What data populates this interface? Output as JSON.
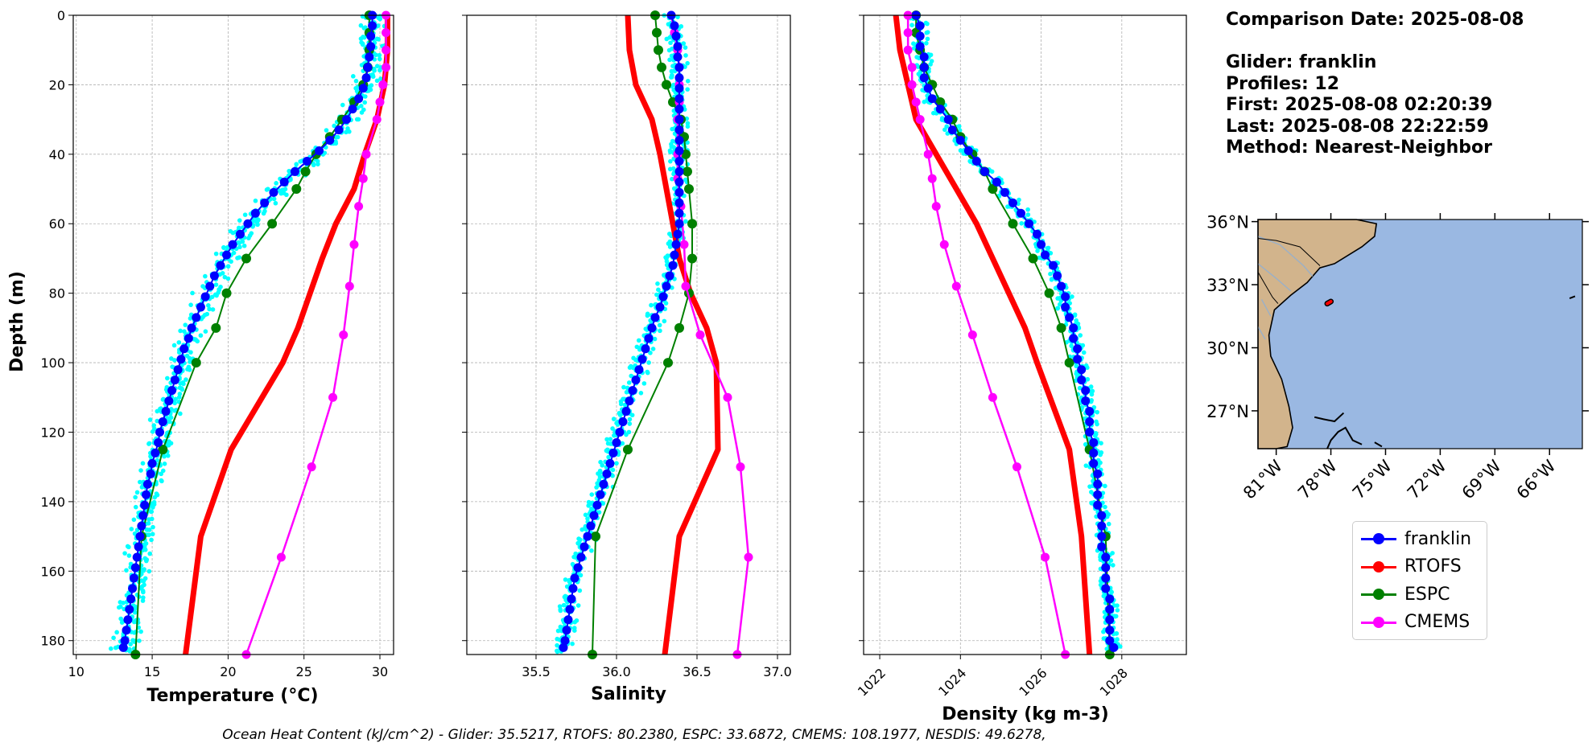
{
  "info": {
    "comparison_date_label": "Comparison Date: 2025-08-08",
    "glider_label": "Glider: franklin",
    "profiles_label": "Profiles: 12",
    "first_label": "First: 2025-08-08 02:20:39",
    "last_label": "Last: 2025-08-08 22:22:59",
    "method_label": "Method: Nearest-Neighbor"
  },
  "footer": "Ocean Heat Content (kJ/cm^2) - Glider: 35.5217,  RTOFS: 80.2380,  ESPC: 33.6872,  CMEMS: 108.1977,  NESDIS: 49.6278,",
  "colors": {
    "glider": "#0000ff",
    "rtofs": "#ff0000",
    "espc": "#008000",
    "cmems": "#ff00ff",
    "raw": "#00ffff",
    "land": "#d2b48c",
    "ocean": "#9ab8e2"
  },
  "legend": [
    {
      "label": "franklin",
      "color": "#0000ff"
    },
    {
      "label": "RTOFS",
      "color": "#ff0000"
    },
    {
      "label": "ESPC",
      "color": "#008000"
    },
    {
      "label": "CMEMS",
      "color": "#ff00ff"
    }
  ],
  "chart_data": [
    {
      "type": "line",
      "id": "temperature",
      "xlabel": "Temperature (°C)",
      "ylabel": "Depth (m)",
      "xlim": [
        9.8,
        30.9
      ],
      "ylim": [
        184,
        0
      ],
      "xticks": [
        10,
        15,
        20,
        25,
        30
      ],
      "yticks": [
        0,
        20,
        40,
        60,
        80,
        100,
        120,
        140,
        160,
        180
      ],
      "grid": true,
      "series": [
        {
          "name": "franklin",
          "depth": [
            0,
            3,
            6,
            9,
            12,
            15,
            18,
            21,
            24,
            27,
            30,
            33,
            36,
            39,
            42,
            45,
            48,
            51,
            54,
            57,
            60,
            63,
            66,
            69,
            72,
            75,
            78,
            81,
            84,
            87,
            90,
            93,
            96,
            99,
            102,
            105,
            108,
            111,
            114,
            117,
            120,
            123,
            126,
            129,
            132,
            135,
            138,
            141,
            144,
            147,
            150,
            153,
            156,
            159,
            162,
            165,
            168,
            171,
            174,
            177,
            180,
            182
          ],
          "values": [
            29.5,
            29.5,
            29.4,
            29.4,
            29.3,
            29.2,
            29.1,
            28.9,
            28.6,
            28.2,
            27.8,
            27.3,
            26.7,
            26.0,
            25.2,
            24.4,
            23.7,
            23.0,
            22.4,
            21.8,
            21.3,
            20.8,
            20.3,
            19.9,
            19.5,
            19.1,
            18.8,
            18.5,
            18.2,
            17.9,
            17.6,
            17.4,
            17.1,
            16.9,
            16.7,
            16.5,
            16.3,
            16.1,
            15.9,
            15.7,
            15.5,
            15.4,
            15.2,
            15.0,
            14.9,
            14.7,
            14.6,
            14.5,
            14.4,
            14.3,
            14.2,
            14.1,
            14.0,
            13.9,
            13.8,
            13.7,
            13.6,
            13.5,
            13.4,
            13.3,
            13.2,
            13.1
          ]
        },
        {
          "name": "RTOFS",
          "depth": [
            0,
            10,
            20,
            30,
            40,
            50,
            60,
            70,
            80,
            90,
            100,
            125,
            150,
            184
          ],
          "values": [
            30.5,
            30.5,
            30.3,
            29.8,
            29.0,
            28.3,
            27.1,
            26.2,
            25.4,
            24.6,
            23.6,
            20.2,
            18.2,
            17.2
          ]
        },
        {
          "name": "ESPC",
          "depth": [
            0,
            5,
            10,
            15,
            20,
            25,
            30,
            35,
            40,
            45,
            50,
            60,
            70,
            80,
            90,
            100,
            125,
            150,
            184
          ],
          "values": [
            29.3,
            29.3,
            29.3,
            29.2,
            28.9,
            28.3,
            27.5,
            26.7,
            25.8,
            25.1,
            24.5,
            22.9,
            21.2,
            19.9,
            19.2,
            17.9,
            15.7,
            14.3,
            13.9
          ]
        },
        {
          "name": "CMEMS",
          "depth": [
            0,
            5,
            10,
            15,
            20,
            25,
            30,
            40,
            47,
            55,
            66,
            78,
            92,
            110,
            130,
            156,
            184
          ],
          "values": [
            30.4,
            30.4,
            30.4,
            30.4,
            30.2,
            30.0,
            29.8,
            29.1,
            28.9,
            28.6,
            28.3,
            28.0,
            27.6,
            26.9,
            25.5,
            23.5,
            21.2
          ]
        }
      ]
    },
    {
      "type": "line",
      "id": "salinity",
      "xlabel": "Salinity",
      "xlim": [
        35.07,
        37.08
      ],
      "ylim": [
        184,
        0
      ],
      "xticks": [
        35.5,
        36.0,
        36.5,
        37.0
      ],
      "grid": true,
      "series": [
        {
          "name": "franklin",
          "depth": [
            0,
            3,
            6,
            9,
            12,
            15,
            18,
            21,
            24,
            27,
            30,
            33,
            36,
            39,
            42,
            45,
            48,
            51,
            54,
            57,
            60,
            63,
            66,
            69,
            72,
            75,
            78,
            81,
            84,
            87,
            90,
            93,
            96,
            99,
            102,
            105,
            108,
            111,
            114,
            117,
            120,
            123,
            126,
            129,
            132,
            135,
            138,
            141,
            144,
            147,
            150,
            153,
            156,
            159,
            162,
            165,
            168,
            171,
            174,
            177,
            180,
            182
          ],
          "values": [
            36.34,
            36.36,
            36.37,
            36.38,
            36.38,
            36.39,
            36.39,
            36.39,
            36.39,
            36.39,
            36.39,
            36.39,
            36.39,
            36.39,
            36.39,
            36.39,
            36.39,
            36.39,
            36.39,
            36.39,
            36.39,
            36.38,
            36.37,
            36.36,
            36.35,
            36.33,
            36.31,
            36.29,
            36.27,
            36.24,
            36.22,
            36.2,
            36.18,
            36.16,
            36.14,
            36.12,
            36.1,
            36.08,
            36.06,
            36.04,
            36.02,
            36.0,
            35.98,
            35.96,
            35.94,
            35.92,
            35.9,
            35.88,
            35.86,
            35.84,
            35.82,
            35.8,
            35.78,
            35.76,
            35.74,
            35.73,
            35.72,
            35.71,
            35.7,
            35.69,
            35.68,
            35.67
          ]
        },
        {
          "name": "RTOFS",
          "depth": [
            0,
            10,
            20,
            30,
            40,
            50,
            60,
            70,
            80,
            90,
            100,
            125,
            150,
            184
          ],
          "values": [
            36.07,
            36.08,
            36.12,
            36.22,
            36.27,
            36.31,
            36.35,
            36.39,
            36.46,
            36.56,
            36.62,
            36.63,
            36.39,
            36.3
          ]
        },
        {
          "name": "ESPC",
          "depth": [
            0,
            5,
            10,
            15,
            20,
            25,
            30,
            35,
            40,
            45,
            50,
            60,
            70,
            80,
            90,
            100,
            125,
            150,
            184
          ],
          "values": [
            36.24,
            36.25,
            36.26,
            36.28,
            36.31,
            36.35,
            36.4,
            36.42,
            36.43,
            36.44,
            36.45,
            36.47,
            36.47,
            36.45,
            36.39,
            36.32,
            36.07,
            35.87,
            35.85
          ]
        },
        {
          "name": "CMEMS",
          "depth": [
            0,
            5,
            10,
            15,
            20,
            25,
            30,
            40,
            47,
            55,
            66,
            78,
            92,
            110,
            130,
            156,
            184
          ],
          "values": [
            36.34,
            36.36,
            36.38,
            36.39,
            36.39,
            36.39,
            36.38,
            36.38,
            36.38,
            36.4,
            36.42,
            36.43,
            36.52,
            36.69,
            36.77,
            36.82,
            36.75
          ]
        }
      ]
    },
    {
      "type": "line",
      "id": "density",
      "xlabel": "Density (kg m-3)",
      "xlim": [
        1021.6,
        1029.6
      ],
      "ylim": [
        184,
        0
      ],
      "xticks": [
        1022,
        1024,
        1026,
        1028
      ],
      "grid": true,
      "series": [
        {
          "name": "franklin",
          "depth": [
            0,
            3,
            6,
            9,
            12,
            15,
            18,
            21,
            24,
            27,
            30,
            33,
            36,
            39,
            42,
            45,
            48,
            51,
            54,
            57,
            60,
            63,
            66,
            69,
            72,
            75,
            78,
            81,
            84,
            87,
            90,
            93,
            96,
            99,
            102,
            105,
            108,
            111,
            114,
            117,
            120,
            123,
            126,
            129,
            132,
            135,
            138,
            141,
            144,
            147,
            150,
            153,
            156,
            159,
            162,
            165,
            168,
            171,
            174,
            177,
            180,
            182
          ],
          "values": [
            1022.9,
            1023.0,
            1023.0,
            1023.0,
            1023.1,
            1023.1,
            1023.1,
            1023.2,
            1023.3,
            1023.5,
            1023.7,
            1023.8,
            1024.0,
            1024.2,
            1024.4,
            1024.6,
            1024.9,
            1025.1,
            1025.3,
            1025.5,
            1025.7,
            1025.9,
            1026.0,
            1026.1,
            1026.3,
            1026.4,
            1026.5,
            1026.6,
            1026.6,
            1026.7,
            1026.8,
            1026.8,
            1026.9,
            1026.9,
            1027.0,
            1027.0,
            1027.1,
            1027.1,
            1027.2,
            1027.2,
            1027.2,
            1027.3,
            1027.3,
            1027.3,
            1027.4,
            1027.4,
            1027.4,
            1027.4,
            1027.5,
            1027.5,
            1027.5,
            1027.5,
            1027.6,
            1027.6,
            1027.6,
            1027.6,
            1027.7,
            1027.7,
            1027.7,
            1027.7,
            1027.7,
            1027.8
          ]
        },
        {
          "name": "RTOFS",
          "depth": [
            0,
            10,
            20,
            30,
            40,
            50,
            60,
            70,
            80,
            90,
            100,
            125,
            150,
            184
          ],
          "values": [
            1022.4,
            1022.5,
            1022.7,
            1022.9,
            1023.4,
            1023.9,
            1024.4,
            1024.8,
            1025.2,
            1025.6,
            1025.9,
            1026.7,
            1027.0,
            1027.2
          ]
        },
        {
          "name": "ESPC",
          "depth": [
            0,
            5,
            10,
            15,
            20,
            25,
            30,
            35,
            40,
            45,
            50,
            60,
            70,
            80,
            90,
            100,
            125,
            150,
            184
          ],
          "values": [
            1022.9,
            1022.9,
            1023.0,
            1023.1,
            1023.3,
            1023.5,
            1023.8,
            1024.0,
            1024.3,
            1024.6,
            1024.8,
            1025.3,
            1025.8,
            1026.2,
            1026.5,
            1026.7,
            1027.2,
            1027.6,
            1027.7
          ]
        },
        {
          "name": "CMEMS",
          "depth": [
            0,
            5,
            10,
            15,
            20,
            25,
            30,
            40,
            47,
            55,
            66,
            78,
            92,
            110,
            130,
            156,
            184
          ],
          "values": [
            1022.7,
            1022.7,
            1022.7,
            1022.8,
            1022.8,
            1022.9,
            1023.0,
            1023.2,
            1023.3,
            1023.4,
            1023.6,
            1023.9,
            1024.3,
            1024.8,
            1025.4,
            1026.1,
            1026.6
          ]
        }
      ]
    },
    {
      "type": "map",
      "id": "location-map",
      "lat_ticks": [
        "36°N",
        "33°N",
        "30°N",
        "27°N"
      ],
      "lat_values": [
        36,
        33,
        30,
        27
      ],
      "lon_ticks": [
        "81°W",
        "78°W",
        "75°W",
        "72°W",
        "69°W",
        "66°W"
      ],
      "lon_values": [
        -81,
        -78,
        -75,
        -72,
        -69,
        -66
      ],
      "lon_range": [
        -82,
        -64.2
      ],
      "lat_range": [
        25.2,
        36.1
      ],
      "glider_track": [
        [
          -78.2,
          32.1
        ],
        [
          -78.0,
          32.2
        ]
      ]
    }
  ]
}
